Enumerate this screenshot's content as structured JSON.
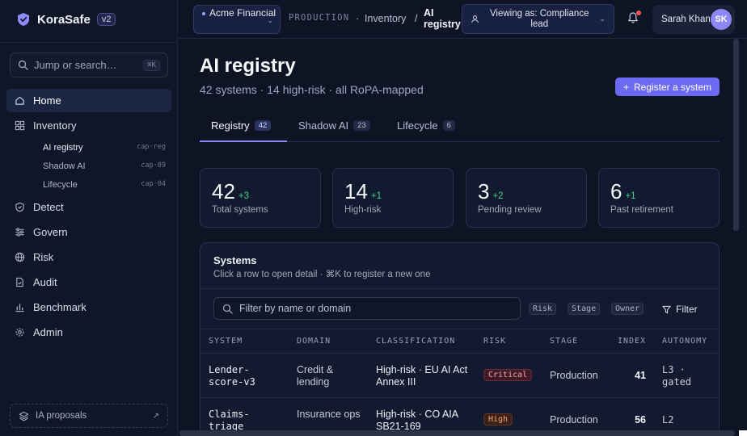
{
  "app": {
    "name": "KoraSafe",
    "version": "v2"
  },
  "colors": {
    "accent": "#6d6af2",
    "background": "#0e1424",
    "positive_delta": "#43d08a",
    "critical": "#f7a0a7",
    "high": "#f5a56f"
  },
  "sidebar": {
    "search": {
      "placeholder": "Jump or search…",
      "shortcut": "⌘K"
    },
    "items": [
      {
        "label": "Home",
        "icon": "home-icon",
        "active": true
      },
      {
        "label": "Inventory",
        "icon": "grid-icon",
        "active": false
      },
      {
        "label": "Detect",
        "icon": "shield-check-icon",
        "active": false
      },
      {
        "label": "Govern",
        "icon": "sliders-icon",
        "active": false
      },
      {
        "label": "Risk",
        "icon": "globe-icon",
        "active": false
      },
      {
        "label": "Audit",
        "icon": "file-check-icon",
        "active": false
      },
      {
        "label": "Benchmark",
        "icon": "bar-chart-icon",
        "active": false
      },
      {
        "label": "Admin",
        "icon": "gear-icon",
        "active": false
      }
    ],
    "subitems": [
      {
        "label": "AI registry",
        "code": "cap·reg",
        "active": true
      },
      {
        "label": "Shadow AI",
        "code": "cap·09",
        "active": false
      },
      {
        "label": "Lifecycle",
        "code": "cap·04",
        "active": false
      }
    ],
    "proposals": {
      "label": "IA proposals",
      "icon": "layers-icon"
    }
  },
  "topbar": {
    "org": "Acme Financial",
    "env": "PRODUCTION",
    "breadcrumb": [
      "Inventory",
      "AI registry"
    ],
    "viewing_as": "Viewing as: Compliance lead",
    "user": {
      "name": "Sarah Khan",
      "initials": "SK"
    },
    "has_notification": true
  },
  "page": {
    "title": "AI registry",
    "subtitle": "42 systems · 14 high-risk · all RoPA-mapped",
    "cta": "Register a system",
    "tabs": [
      {
        "label": "Registry",
        "count": "42",
        "active": true
      },
      {
        "label": "Shadow AI",
        "count": "23",
        "active": false
      },
      {
        "label": "Lifecycle",
        "count": "6",
        "active": false
      }
    ],
    "kpis": [
      {
        "value": "42",
        "delta": "+3",
        "label": "Total systems"
      },
      {
        "value": "14",
        "delta": "+1",
        "label": "High-risk"
      },
      {
        "value": "3",
        "delta": "+2",
        "label": "Pending review"
      },
      {
        "value": "6",
        "delta": "+1",
        "label": "Past retirement"
      }
    ]
  },
  "systems": {
    "title": "Systems",
    "subtitle": "Click a row to open detail · ⌘K to register a new one",
    "filter_placeholder": "Filter by name or domain",
    "chips": [
      "Risk",
      "Stage",
      "Owner"
    ],
    "filter_label": "Filter",
    "columns": [
      "SYSTEM",
      "DOMAIN",
      "CLASSIFICATION",
      "RISK",
      "STAGE",
      "INDEX",
      "AUTONOMY"
    ],
    "rows": [
      {
        "system": "Lender-score-v3",
        "domain": "Credit & lending",
        "classification": "High-risk · EU AI Act Annex III",
        "risk": "Critical",
        "stage": "Production",
        "index": "41",
        "autonomy": "L3 · gated"
      },
      {
        "system": "Claims-triage",
        "domain": "Insurance ops",
        "classification": "High-risk · CO AIA SB21-169",
        "risk": "High",
        "stage": "Production",
        "index": "56",
        "autonomy": "L2"
      }
    ]
  }
}
